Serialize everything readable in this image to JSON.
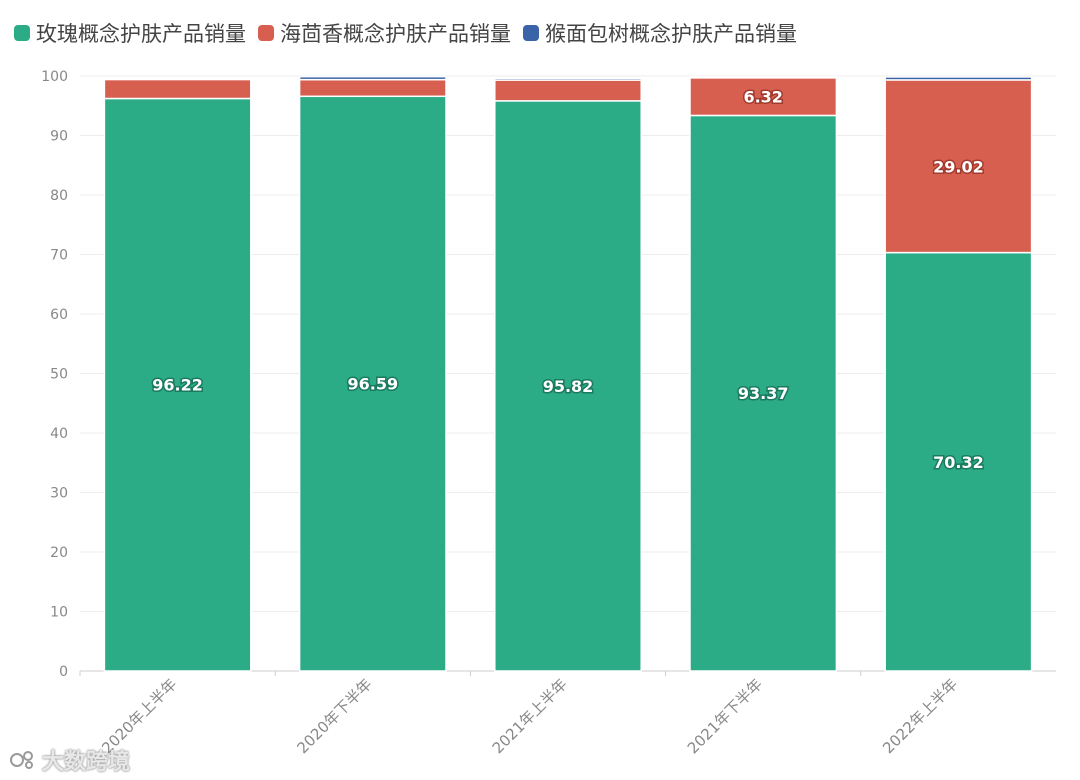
{
  "legend": {
    "items": [
      {
        "label": "玫瑰概念护肤产品销量",
        "color": "#2bab86"
      },
      {
        "label": "海茴香概念护肤产品销量",
        "color": "#d65f4f"
      },
      {
        "label": "猴面包树概念护肤产品销量",
        "color": "#3a63a8"
      }
    ]
  },
  "watermark": {
    "text": "大数跨境"
  },
  "chart_data": {
    "type": "bar",
    "stacked": true,
    "categories": [
      "2020年上半年",
      "2020年下半年",
      "2021年上半年",
      "2021年下半年",
      "2022年上半年"
    ],
    "series": [
      {
        "name": "玫瑰概念护肤产品销量",
        "color": "#2bab86",
        "values": [
          96.22,
          96.59,
          95.82,
          93.37,
          70.32
        ],
        "labels": [
          "96.22",
          "96.59",
          "95.82",
          "93.37",
          "70.32"
        ]
      },
      {
        "name": "海茴香概念护肤产品销量",
        "color": "#d65f4f",
        "values": [
          3.2,
          2.8,
          3.5,
          6.32,
          29.02
        ],
        "labels": [
          "",
          "",
          "",
          "6.32",
          "29.02"
        ]
      },
      {
        "name": "猴面包树概念护肤产品销量",
        "color": "#3a63a8",
        "values": [
          0.2,
          0.5,
          0.3,
          0.2,
          0.5
        ],
        "labels": [
          "",
          "",
          "",
          "",
          ""
        ]
      }
    ],
    "ylim": [
      0,
      100
    ],
    "yticks": [
      0,
      10,
      20,
      30,
      40,
      50,
      60,
      70,
      80,
      90,
      100
    ],
    "grid": true,
    "legend_position": "top-left"
  }
}
